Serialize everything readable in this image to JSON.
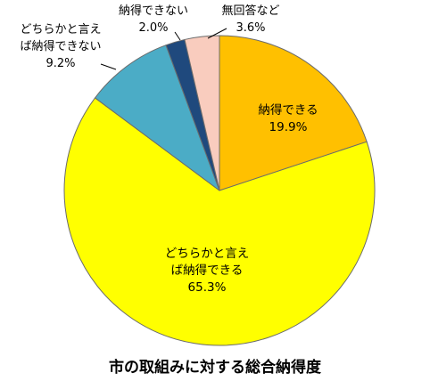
{
  "chart_data": {
    "type": "pie",
    "title": "市の取組みに対する総合納得度",
    "start_angle_deg": 0,
    "direction": "clockwise",
    "slices": [
      {
        "label": [
          "納得できる"
        ],
        "value": 19.9,
        "value_label": "19.9%",
        "color": "#FFC000",
        "label_position": "inside"
      },
      {
        "label": [
          "どちらかと言え",
          "ば納得できる"
        ],
        "value": 65.3,
        "value_label": "65.3%",
        "color": "#FFFF00",
        "label_position": "inside"
      },
      {
        "label": [
          "どちらかと言え",
          "ば納得できない"
        ],
        "value": 9.2,
        "value_label": "9.2%",
        "color": "#4BACC6",
        "label_position": "outside"
      },
      {
        "label": [
          "納得できない"
        ],
        "value": 2.0,
        "value_label": "2.0%",
        "color": "#1F497D",
        "label_position": "outside"
      },
      {
        "label": [
          "無回答など"
        ],
        "value": 3.6,
        "value_label": "3.6%",
        "color": "#F9CCBE",
        "label_position": "outside"
      }
    ]
  }
}
